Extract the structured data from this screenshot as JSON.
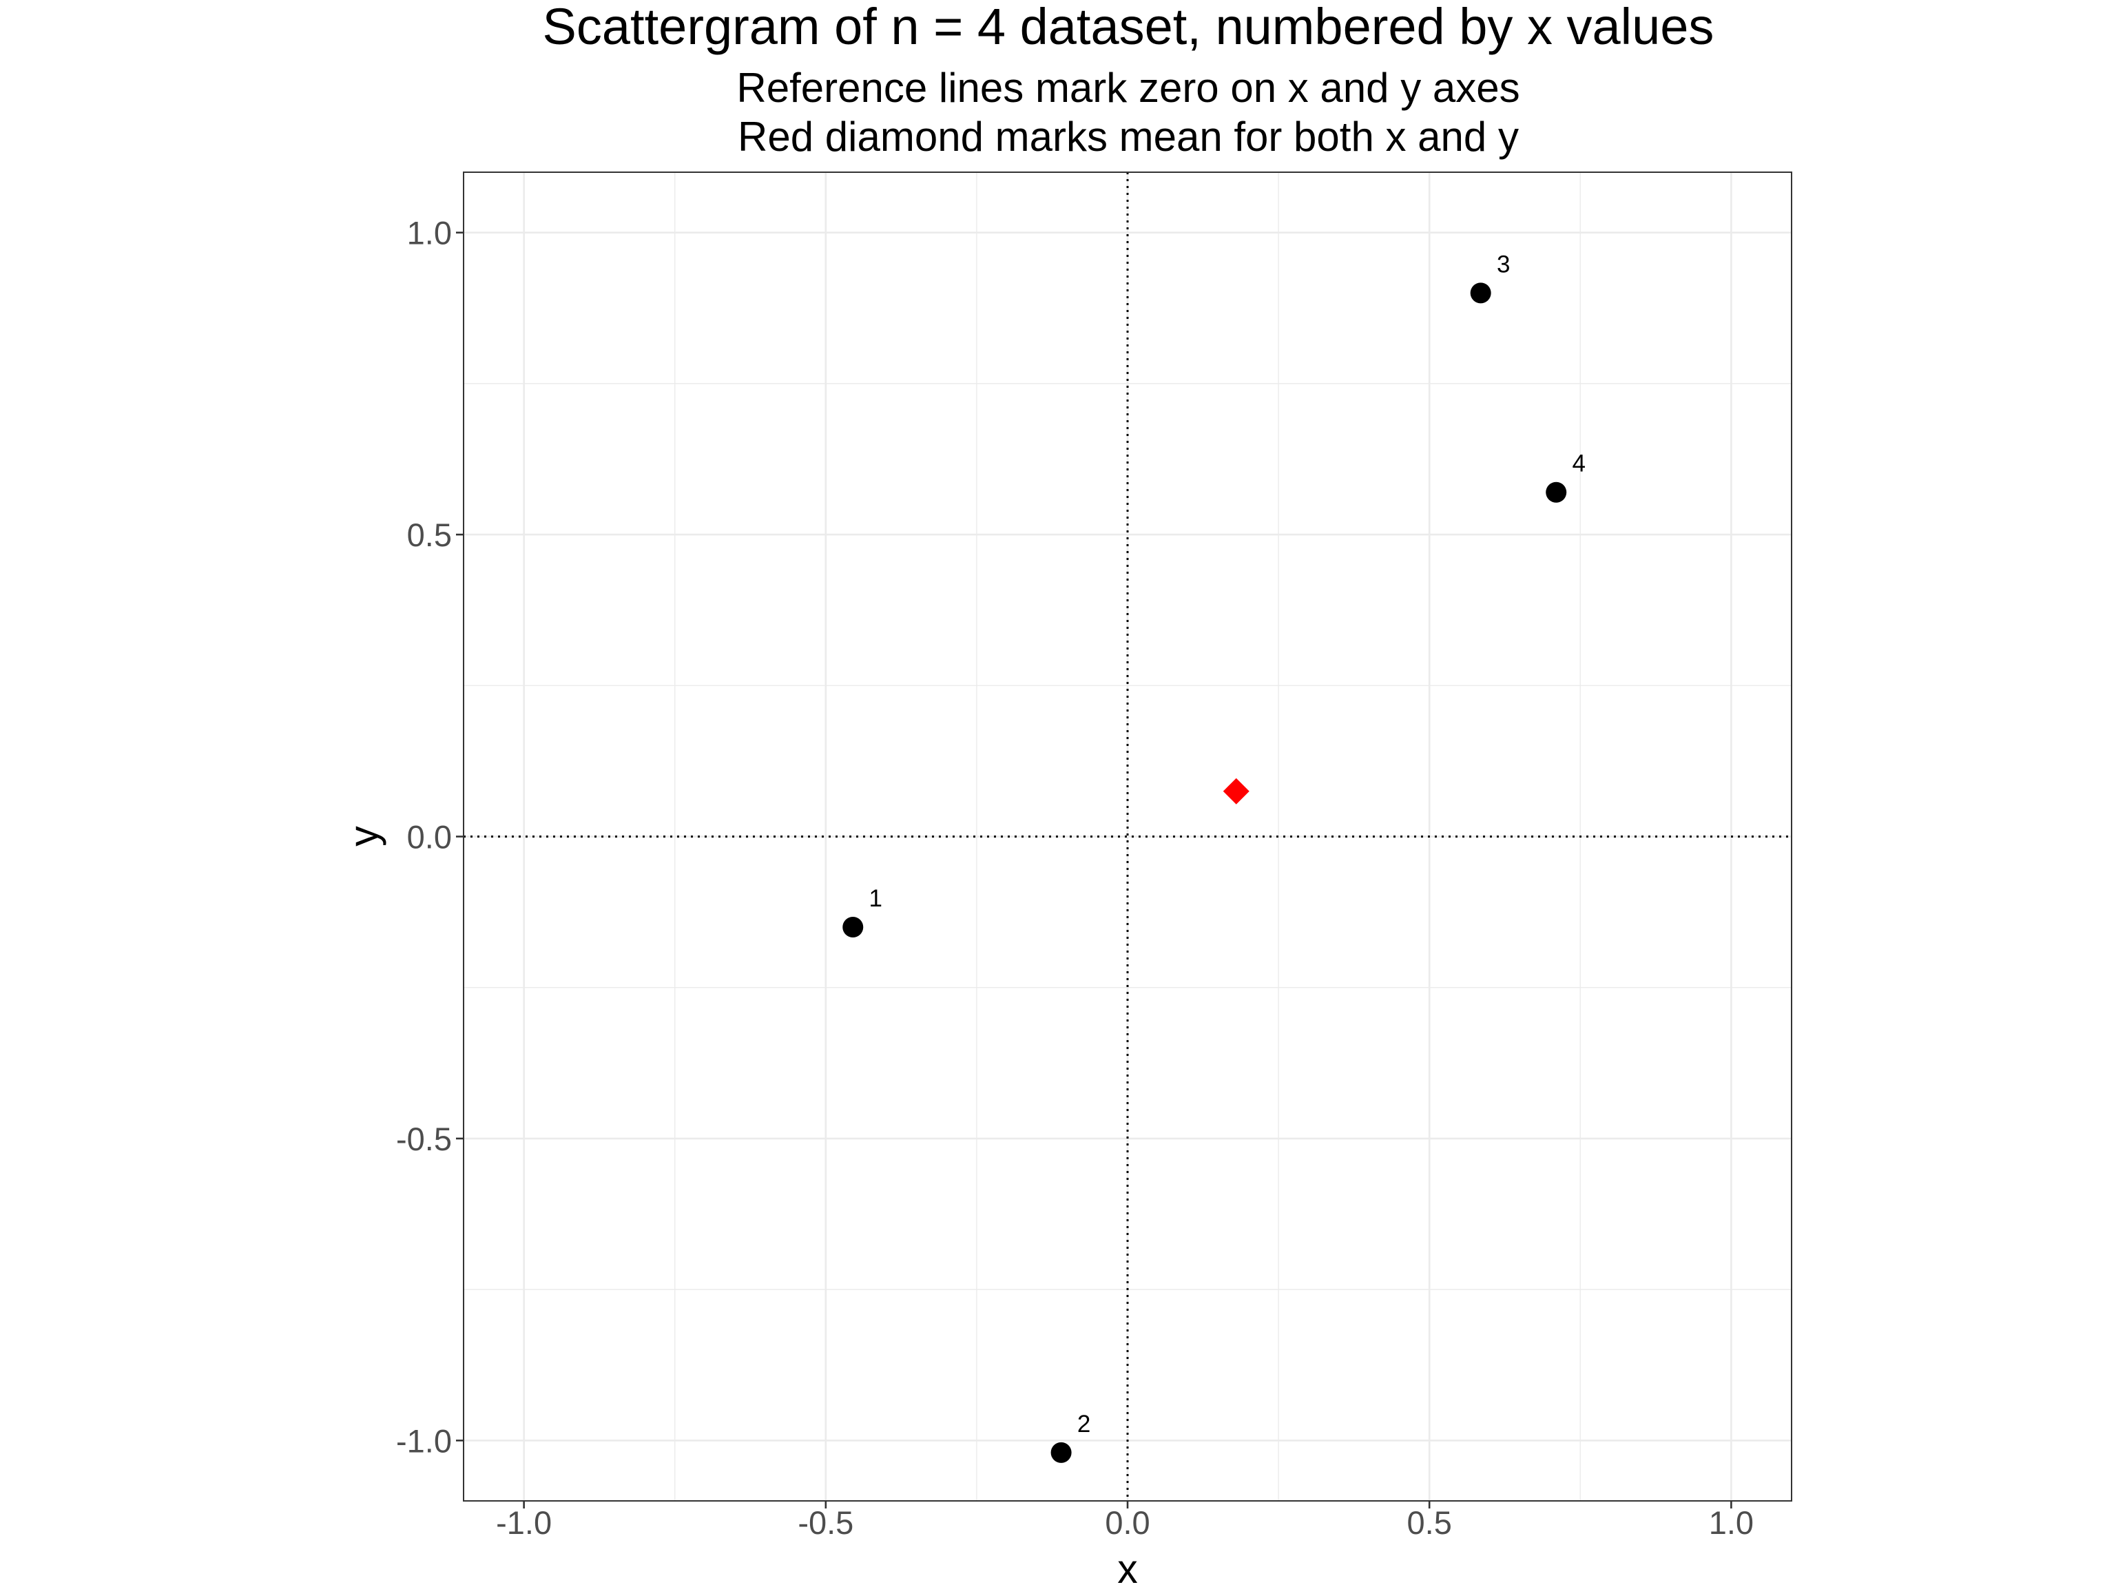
{
  "chart_data": {
    "type": "scatter",
    "title": "Scattergram of n = 4 dataset, numbered by x values",
    "subtitle": [
      "Reference lines mark zero on x and y axes",
      "Red diamond marks mean for both x and y"
    ],
    "xlabel": "x",
    "ylabel": "y",
    "xlim": [
      -1.1,
      1.1
    ],
    "ylim": [
      -1.1,
      1.1
    ],
    "x_ticks": [
      -1.0,
      -0.5,
      0.0,
      0.5,
      1.0
    ],
    "y_ticks": [
      -1.0,
      -0.5,
      0.0,
      0.5,
      1.0
    ],
    "x_tick_labels": [
      "-1.0",
      "-0.5",
      "0.0",
      "0.5",
      "1.0"
    ],
    "y_tick_labels": [
      "-1.0",
      "-0.5",
      "0.0",
      "0.5",
      "1.0"
    ],
    "minor_grid": [
      -0.75,
      -0.25,
      0.25,
      0.75
    ],
    "grid": true,
    "reference_lines": {
      "x": 0,
      "y": 0,
      "style": "dotted"
    },
    "points": [
      {
        "label": "1",
        "x": -0.455,
        "y": -0.15
      },
      {
        "label": "2",
        "x": -0.11,
        "y": -1.02
      },
      {
        "label": "3",
        "x": 0.585,
        "y": 0.9
      },
      {
        "label": "4",
        "x": 0.71,
        "y": 0.57
      }
    ],
    "mean_point": {
      "x": 0.18,
      "y": 0.075,
      "color": "#ff0000",
      "shape": "diamond"
    },
    "point_color": "#000000",
    "grid_color": "#ebebeb",
    "panel_border_color": "#333333"
  }
}
